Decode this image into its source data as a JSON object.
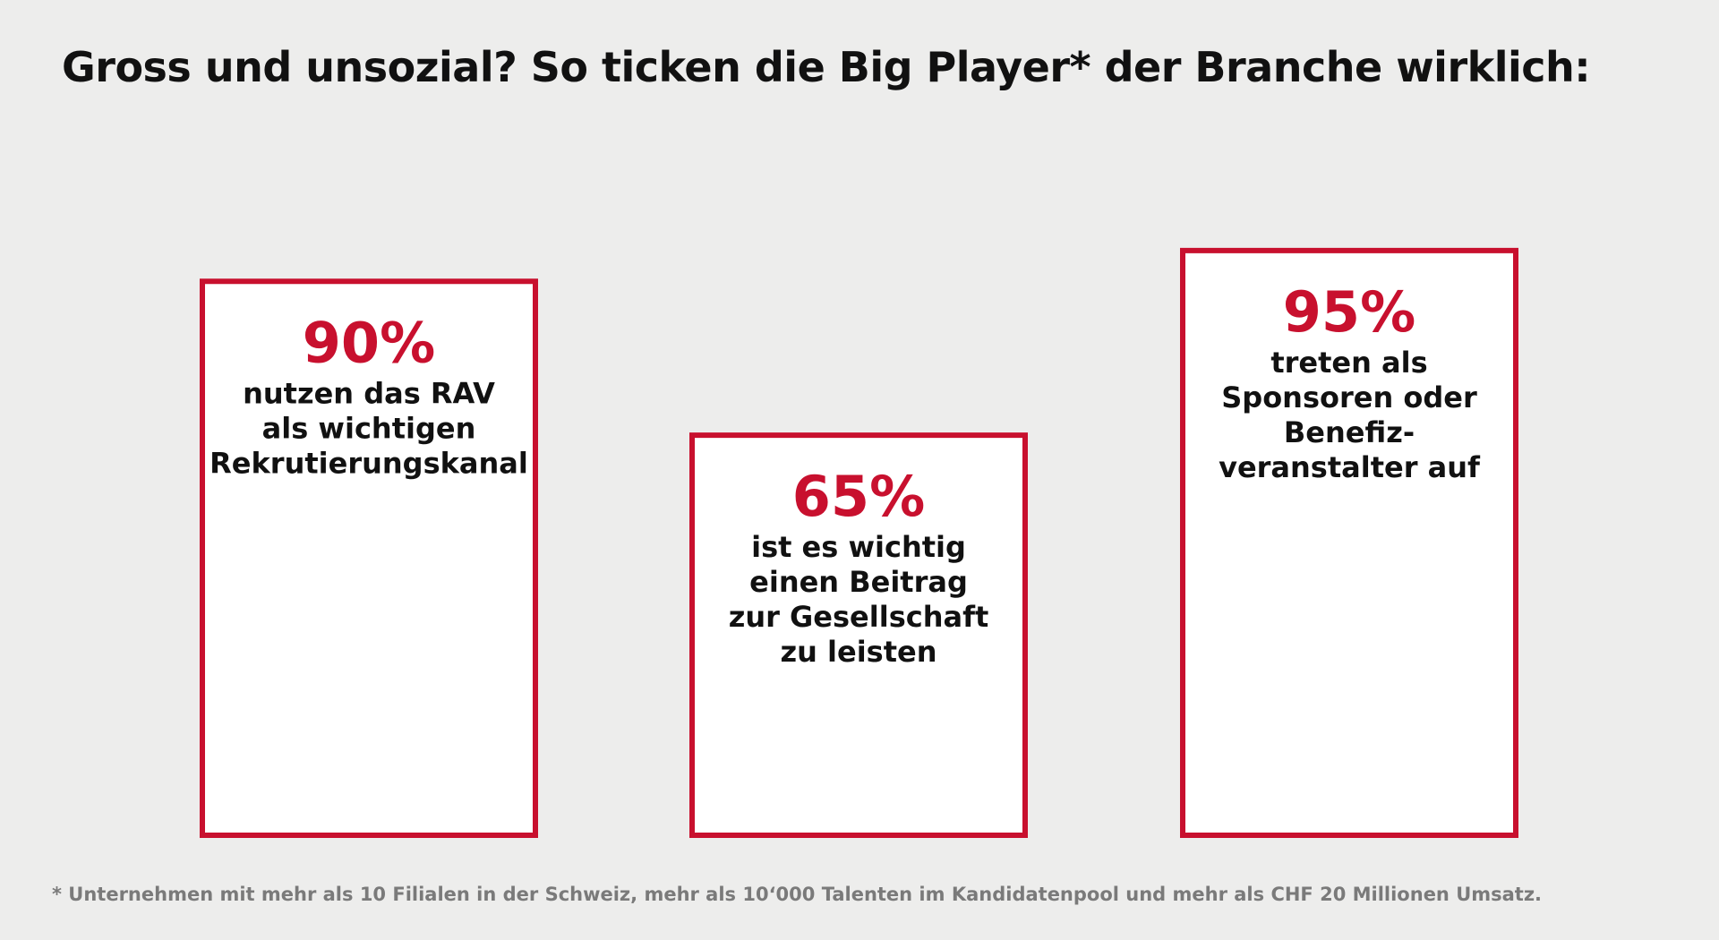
{
  "title": "Gross und unsozial? So ticken die Big Player* der Branche wirklich:",
  "footnote": "* Unternehmen mit mehr als 10 Filialen in der Schweiz, mehr als 10‘000 Talenten im Kandidatenpool und mehr als CHF 20 Millionen Umsatz.",
  "colors": {
    "accent": "#c8102e",
    "background": "#ededec",
    "text": "#111111",
    "footnote": "#7a7a7a"
  },
  "chart_data": {
    "type": "bar",
    "title": "Gross und unsozial? So ticken die Big Player* der Branche wirklich:",
    "xlabel": "",
    "ylabel": "",
    "ylim": [
      0,
      100
    ],
    "grid": false,
    "unit": "%",
    "bars": [
      {
        "value": 90,
        "value_label": "90%",
        "description": [
          "nutzen das RAV",
          "als wichtigen",
          "Rekrutierungskanal"
        ]
      },
      {
        "value": 65,
        "value_label": "65%",
        "description": [
          "ist es wichtig",
          "einen Beitrag",
          "zur Gesellschaft",
          "zu leisten"
        ]
      },
      {
        "value": 95,
        "value_label": "95%",
        "description": [
          "treten als",
          "Sponsoren oder",
          "Benefiz-",
          "veranstalter auf"
        ]
      }
    ]
  }
}
